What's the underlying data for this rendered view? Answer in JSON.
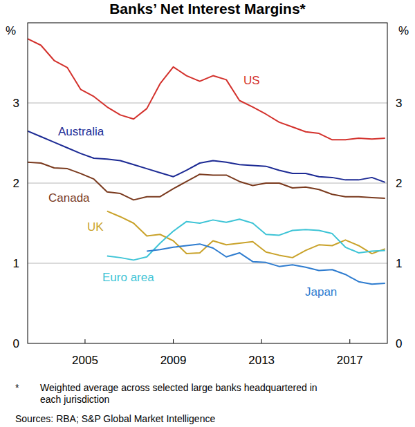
{
  "chart_data": {
    "type": "line",
    "title": "Banks’ Net Interest Margins*",
    "y_unit": "%",
    "footnote": {
      "symbol": "*",
      "text": [
        "Weighted average across selected large banks headquartered in",
        "each jurisdiction"
      ]
    },
    "source": "Sources: RBA; S&P Global Market Intelligence",
    "x": [
      2002.4,
      2003.0,
      2003.6,
      2004.2,
      2004.8,
      2005.4,
      2006.0,
      2006.6,
      2007.2,
      2007.8,
      2008.4,
      2009.0,
      2009.6,
      2010.2,
      2010.8,
      2011.4,
      2012.0,
      2012.6,
      2013.2,
      2013.8,
      2014.4,
      2015.0,
      2015.6,
      2016.2,
      2016.8,
      2017.4,
      2018.0,
      2018.6
    ],
    "xlim": [
      2002.4,
      2018.7
    ],
    "xticks": [
      2005,
      2009,
      2013,
      2017
    ],
    "ylim": [
      0,
      4
    ],
    "yticks": [
      0,
      1,
      2,
      3
    ],
    "grid": true,
    "series": [
      {
        "name": "US",
        "color": "#d3312c",
        "values": [
          3.8,
          3.72,
          3.53,
          3.44,
          3.17,
          3.08,
          2.95,
          2.85,
          2.8,
          2.93,
          3.24,
          3.45,
          3.34,
          3.27,
          3.34,
          3.29,
          3.03,
          2.95,
          2.86,
          2.76,
          2.7,
          2.64,
          2.62,
          2.54,
          2.54,
          2.56,
          2.55,
          2.56
        ]
      },
      {
        "name": "Australia",
        "color": "#1c2a94",
        "values": [
          2.65,
          2.58,
          2.51,
          2.44,
          2.37,
          2.31,
          2.3,
          2.28,
          2.23,
          2.18,
          2.13,
          2.08,
          2.16,
          2.25,
          2.28,
          2.26,
          2.23,
          2.22,
          2.21,
          2.16,
          2.12,
          2.12,
          2.08,
          2.07,
          2.04,
          2.04,
          2.07,
          2.01
        ]
      },
      {
        "name": "Canada",
        "color": "#7a3a1e",
        "values": [
          2.26,
          2.25,
          2.19,
          2.18,
          2.12,
          2.05,
          1.89,
          1.87,
          1.79,
          1.83,
          1.83,
          1.93,
          2.02,
          2.11,
          2.1,
          2.1,
          2.02,
          1.97,
          2.0,
          2.0,
          1.94,
          1.95,
          1.92,
          1.86,
          1.83,
          1.83,
          1.82,
          1.81
        ]
      },
      {
        "name": "UK",
        "color": "#c9a22a",
        "values": [
          null,
          null,
          null,
          null,
          null,
          null,
          1.65,
          1.58,
          1.5,
          1.34,
          1.36,
          1.28,
          1.12,
          1.13,
          1.28,
          1.23,
          1.25,
          1.27,
          1.14,
          1.1,
          1.07,
          1.16,
          1.23,
          1.22,
          1.29,
          1.22,
          1.12,
          1.18
        ]
      },
      {
        "name": "Euro area",
        "color": "#3ec4d6",
        "values": [
          null,
          null,
          null,
          null,
          null,
          null,
          1.09,
          1.07,
          1.04,
          1.08,
          1.25,
          1.4,
          1.52,
          1.5,
          1.54,
          1.51,
          1.55,
          1.5,
          1.36,
          1.35,
          1.41,
          1.42,
          1.41,
          1.37,
          1.2,
          1.13,
          1.15,
          1.16
        ]
      },
      {
        "name": "Japan",
        "color": "#2e7ccf",
        "values": [
          null,
          null,
          null,
          null,
          null,
          null,
          null,
          null,
          null,
          1.15,
          1.17,
          1.2,
          1.22,
          1.24,
          1.19,
          1.08,
          1.13,
          1.02,
          1.01,
          0.96,
          0.98,
          0.95,
          0.91,
          0.92,
          0.86,
          0.77,
          0.74,
          0.75
        ]
      }
    ]
  }
}
